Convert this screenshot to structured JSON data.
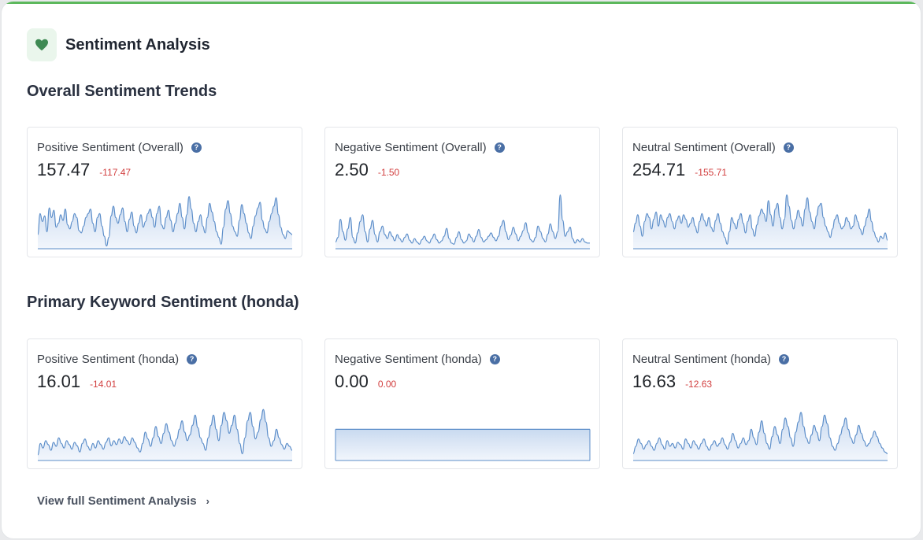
{
  "header": {
    "title": "Sentiment Analysis",
    "icon": "heart-icon",
    "accent": "#5cb85c"
  },
  "sections": [
    {
      "title": "Overall Sentiment Trends",
      "cards": [
        {
          "label": "Positive Sentiment (Overall)",
          "value": "157.47",
          "delta": "-117.47",
          "trend": [
            0.25,
            0.62,
            0.48,
            0.58,
            0.3,
            0.72,
            0.55,
            0.68,
            0.38,
            0.45,
            0.6,
            0.5,
            0.7,
            0.42,
            0.35,
            0.48,
            0.62,
            0.55,
            0.32,
            0.28,
            0.4,
            0.55,
            0.62,
            0.7,
            0.45,
            0.3,
            0.55,
            0.62,
            0.4,
            0.22,
            0.05,
            0.2,
            0.58,
            0.75,
            0.55,
            0.45,
            0.6,
            0.72,
            0.48,
            0.3,
            0.52,
            0.65,
            0.4,
            0.28,
            0.45,
            0.6,
            0.38,
            0.48,
            0.62,
            0.7,
            0.55,
            0.38,
            0.62,
            0.75,
            0.42,
            0.35,
            0.55,
            0.68,
            0.5,
            0.3,
            0.45,
            0.62,
            0.8,
            0.55,
            0.35,
            0.6,
            0.92,
            0.7,
            0.45,
            0.3,
            0.48,
            0.6,
            0.4,
            0.28,
            0.55,
            0.8,
            0.65,
            0.48,
            0.3,
            0.2,
            0.08,
            0.38,
            0.7,
            0.85,
            0.62,
            0.4,
            0.3,
            0.22,
            0.5,
            0.78,
            0.62,
            0.45,
            0.28,
            0.18,
            0.4,
            0.58,
            0.72,
            0.82,
            0.5,
            0.35,
            0.28,
            0.48,
            0.62,
            0.75,
            0.9,
            0.6,
            0.38,
            0.25,
            0.18,
            0.32,
            0.28,
            0.25
          ]
        },
        {
          "label": "Negative Sentiment (Overall)",
          "value": "2.50",
          "delta": "-1.50",
          "trend": [
            0.12,
            0.2,
            0.52,
            0.3,
            0.15,
            0.35,
            0.55,
            0.2,
            0.1,
            0.28,
            0.48,
            0.6,
            0.3,
            0.12,
            0.35,
            0.5,
            0.25,
            0.12,
            0.3,
            0.4,
            0.25,
            0.18,
            0.3,
            0.22,
            0.14,
            0.25,
            0.18,
            0.12,
            0.2,
            0.26,
            0.15,
            0.1,
            0.18,
            0.12,
            0.08,
            0.16,
            0.22,
            0.14,
            0.1,
            0.18,
            0.26,
            0.16,
            0.1,
            0.14,
            0.22,
            0.36,
            0.18,
            0.1,
            0.08,
            0.2,
            0.3,
            0.16,
            0.1,
            0.14,
            0.26,
            0.2,
            0.12,
            0.22,
            0.34,
            0.2,
            0.12,
            0.16,
            0.22,
            0.28,
            0.2,
            0.14,
            0.22,
            0.4,
            0.5,
            0.3,
            0.16,
            0.24,
            0.38,
            0.26,
            0.14,
            0.22,
            0.32,
            0.46,
            0.28,
            0.16,
            0.12,
            0.2,
            0.4,
            0.3,
            0.18,
            0.12,
            0.26,
            0.44,
            0.3,
            0.18,
            0.3,
            0.95,
            0.5,
            0.22,
            0.3,
            0.38,
            0.18,
            0.1,
            0.16,
            0.12,
            0.18,
            0.12,
            0.1,
            0.1
          ]
        },
        {
          "label": "Neutral Sentiment (Overall)",
          "value": "254.71",
          "delta": "-155.71",
          "trend": [
            0.3,
            0.45,
            0.6,
            0.4,
            0.22,
            0.48,
            0.62,
            0.55,
            0.35,
            0.52,
            0.65,
            0.4,
            0.6,
            0.5,
            0.38,
            0.55,
            0.62,
            0.48,
            0.35,
            0.5,
            0.58,
            0.45,
            0.6,
            0.52,
            0.38,
            0.45,
            0.55,
            0.4,
            0.28,
            0.48,
            0.62,
            0.5,
            0.4,
            0.55,
            0.38,
            0.3,
            0.5,
            0.62,
            0.45,
            0.3,
            0.2,
            0.08,
            0.3,
            0.55,
            0.45,
            0.35,
            0.52,
            0.62,
            0.45,
            0.28,
            0.48,
            0.6,
            0.35,
            0.22,
            0.42,
            0.58,
            0.7,
            0.62,
            0.48,
            0.85,
            0.6,
            0.4,
            0.7,
            0.8,
            0.55,
            0.35,
            0.52,
            0.95,
            0.75,
            0.5,
            0.35,
            0.52,
            0.68,
            0.55,
            0.4,
            0.7,
            0.9,
            0.65,
            0.48,
            0.35,
            0.58,
            0.75,
            0.8,
            0.55,
            0.4,
            0.3,
            0.2,
            0.35,
            0.52,
            0.6,
            0.45,
            0.35,
            0.4,
            0.55,
            0.48,
            0.35,
            0.4,
            0.6,
            0.48,
            0.35,
            0.25,
            0.4,
            0.55,
            0.7,
            0.48,
            0.3,
            0.2,
            0.12,
            0.22,
            0.18,
            0.28,
            0.15
          ]
        }
      ]
    },
    {
      "title": "Primary Keyword Sentiment (honda)",
      "cards": [
        {
          "label": "Positive Sentiment (honda)",
          "value": "16.01",
          "delta": "-14.01",
          "trend": [
            0.1,
            0.3,
            0.22,
            0.35,
            0.28,
            0.18,
            0.32,
            0.25,
            0.4,
            0.3,
            0.22,
            0.35,
            0.28,
            0.2,
            0.32,
            0.26,
            0.15,
            0.3,
            0.38,
            0.25,
            0.18,
            0.3,
            0.22,
            0.35,
            0.28,
            0.2,
            0.32,
            0.4,
            0.26,
            0.35,
            0.28,
            0.38,
            0.3,
            0.42,
            0.35,
            0.28,
            0.4,
            0.32,
            0.22,
            0.15,
            0.3,
            0.5,
            0.38,
            0.25,
            0.4,
            0.6,
            0.42,
            0.3,
            0.48,
            0.65,
            0.5,
            0.35,
            0.25,
            0.38,
            0.55,
            0.7,
            0.5,
            0.35,
            0.45,
            0.62,
            0.8,
            0.58,
            0.4,
            0.3,
            0.18,
            0.4,
            0.62,
            0.8,
            0.55,
            0.35,
            0.62,
            0.85,
            0.7,
            0.48,
            0.62,
            0.8,
            0.55,
            0.3,
            0.12,
            0.4,
            0.7,
            0.85,
            0.6,
            0.38,
            0.5,
            0.72,
            0.9,
            0.68,
            0.4,
            0.25,
            0.35,
            0.55,
            0.4,
            0.28,
            0.2,
            0.3,
            0.25,
            0.18
          ]
        },
        {
          "label": "Negative Sentiment (honda)",
          "value": "0.00",
          "delta": "0.00",
          "trend": [
            0.55,
            0.55
          ]
        },
        {
          "label": "Neutral Sentiment (honda)",
          "value": "16.63",
          "delta": "-12.63",
          "trend": [
            0.12,
            0.25,
            0.38,
            0.3,
            0.2,
            0.28,
            0.35,
            0.25,
            0.18,
            0.3,
            0.4,
            0.28,
            0.2,
            0.35,
            0.25,
            0.3,
            0.22,
            0.32,
            0.28,
            0.2,
            0.38,
            0.3,
            0.22,
            0.35,
            0.28,
            0.2,
            0.3,
            0.38,
            0.25,
            0.18,
            0.28,
            0.35,
            0.25,
            0.3,
            0.4,
            0.28,
            0.2,
            0.32,
            0.48,
            0.35,
            0.22,
            0.3,
            0.4,
            0.28,
            0.35,
            0.55,
            0.4,
            0.28,
            0.5,
            0.7,
            0.48,
            0.3,
            0.2,
            0.42,
            0.6,
            0.45,
            0.3,
            0.55,
            0.75,
            0.6,
            0.4,
            0.25,
            0.5,
            0.68,
            0.85,
            0.6,
            0.4,
            0.3,
            0.45,
            0.62,
            0.5,
            0.35,
            0.6,
            0.8,
            0.65,
            0.4,
            0.25,
            0.18,
            0.3,
            0.45,
            0.6,
            0.75,
            0.55,
            0.4,
            0.3,
            0.45,
            0.62,
            0.48,
            0.35,
            0.25,
            0.3,
            0.4,
            0.52,
            0.42,
            0.3,
            0.22,
            0.15,
            0.12
          ]
        }
      ]
    }
  ],
  "footer": {
    "link_label": "View full Sentiment Analysis",
    "chevron": "chevron-right-icon"
  },
  "colors": {
    "line": "#5b8dc9",
    "fill_top": "#c9daf0",
    "fill_bottom": "#f2f6fc",
    "delta": "#d23f3f",
    "help": "#4a6fa5"
  }
}
